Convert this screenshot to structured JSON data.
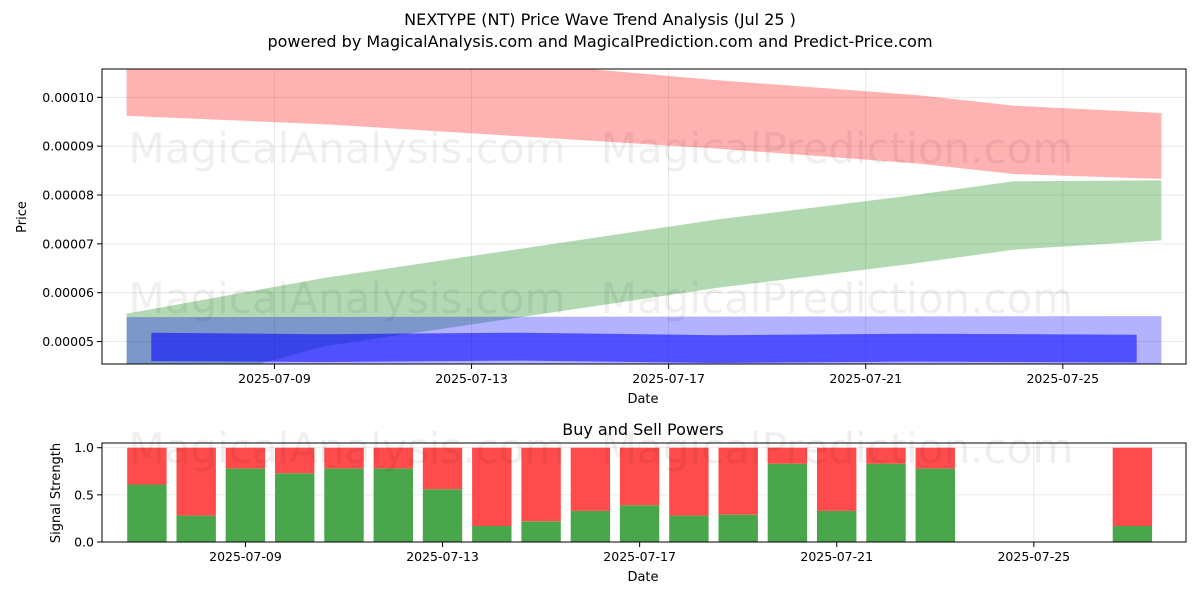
{
  "figure": {
    "title_line1": "NEXTYPE (NT) Price Wave Trend Analysis (Jul 25 )",
    "title_line2": "powered by MagicalAnalysis.com and MagicalPrediction.com and Predict-Price.com",
    "watermarks": [
      "MagicalAnalysis.com",
      "MagicalPrediction.com"
    ]
  },
  "chart_data": [
    {
      "type": "area",
      "xlabel": "Date",
      "ylabel": "Price",
      "x_ticks": [
        "2025-07-09",
        "2025-07-13",
        "2025-07-17",
        "2025-07-21",
        "2025-07-25"
      ],
      "y_ticks": [
        "0.00005",
        "0.00006",
        "0.00007",
        "0.00008",
        "0.00009",
        "0.00010"
      ],
      "xlim": [
        "2025-07-05T12:00",
        "2025-07-27T12:00"
      ],
      "ylim": [
        4.54e-05,
        0.0001058
      ],
      "grid": true,
      "colors": {
        "red": "#ff0000",
        "green": "#008000",
        "blue": "#0000ff",
        "blue_inner": "#0000ff"
      },
      "series": [
        {
          "band": "red",
          "x": [
            "2025-07-06",
            "2025-07-10",
            "2025-07-14",
            "2025-07-18",
            "2025-07-22",
            "2025-07-24",
            "2025-07-27"
          ],
          "upper": [
            0.0001068,
            0.0001085,
            0.000107,
            0.0001035,
            0.0001005,
            9.83e-05,
            9.68e-05
          ],
          "lower": [
            9.62e-05,
            9.45e-05,
            9.2e-05,
            8.95e-05,
            8.65e-05,
            8.43e-05,
            8.33e-05
          ]
        },
        {
          "band": "green",
          "x": [
            "2025-07-06",
            "2025-07-10",
            "2025-07-14",
            "2025-07-18",
            "2025-07-22",
            "2025-07-24",
            "2025-07-27"
          ],
          "upper": [
            5.57e-05,
            6.3e-05,
            6.9e-05,
            7.5e-05,
            8e-05,
            8.28e-05,
            8.3e-05
          ],
          "lower": [
            3.8e-05,
            4.9e-05,
            5.5e-05,
            6.1e-05,
            6.6e-05,
            6.88e-05,
            7.07e-05
          ]
        },
        {
          "band": "blue",
          "x": [
            "2025-07-06",
            "2025-07-27"
          ],
          "upper": [
            5.5e-05,
            5.52e-05
          ],
          "lower": [
            4e-05,
            4e-05
          ]
        },
        {
          "band": "blue_inner",
          "x": [
            "2025-07-06T12:00",
            "2025-07-10",
            "2025-07-14",
            "2025-07-18",
            "2025-07-22",
            "2025-07-26T12:00"
          ],
          "upper": [
            5.18e-05,
            5.15e-05,
            5.18e-05,
            5.13e-05,
            5.16e-05,
            5.14e-05
          ],
          "lower": [
            4.6e-05,
            4.58e-05,
            4.61e-05,
            4.56e-05,
            4.59e-05,
            4.57e-05
          ]
        }
      ]
    },
    {
      "type": "bar",
      "title": "Buy and Sell Powers",
      "xlabel": "Date",
      "ylabel": "Signal Strength",
      "x_ticks": [
        "2025-07-09",
        "2025-07-13",
        "2025-07-17",
        "2025-07-21",
        "2025-07-25"
      ],
      "y_ticks": [
        "0.0",
        "0.5",
        "1.0"
      ],
      "ylim": [
        0,
        1.05
      ],
      "grid": true,
      "colors": {
        "buy": "#4aa64a",
        "sell": "#ff4b4b"
      },
      "dates": [
        "2025-07-07",
        "2025-07-08",
        "2025-07-09",
        "2025-07-10",
        "2025-07-11",
        "2025-07-12",
        "2025-07-13",
        "2025-07-14",
        "2025-07-15",
        "2025-07-16",
        "2025-07-17",
        "2025-07-18",
        "2025-07-19",
        "2025-07-20",
        "2025-07-21",
        "2025-07-22",
        "2025-07-23",
        "2025-07-27"
      ],
      "buy": [
        0.61,
        0.28,
        0.78,
        0.73,
        0.78,
        0.78,
        0.56,
        0.17,
        0.22,
        0.33,
        0.39,
        0.28,
        0.29,
        0.83,
        0.33,
        0.83,
        0.78,
        0.17
      ],
      "sell": [
        0.39,
        0.72,
        0.22,
        0.27,
        0.22,
        0.22,
        0.44,
        0.83,
        0.78,
        0.67,
        0.61,
        0.72,
        0.71,
        0.17,
        0.67,
        0.17,
        0.22,
        0.83
      ]
    }
  ]
}
